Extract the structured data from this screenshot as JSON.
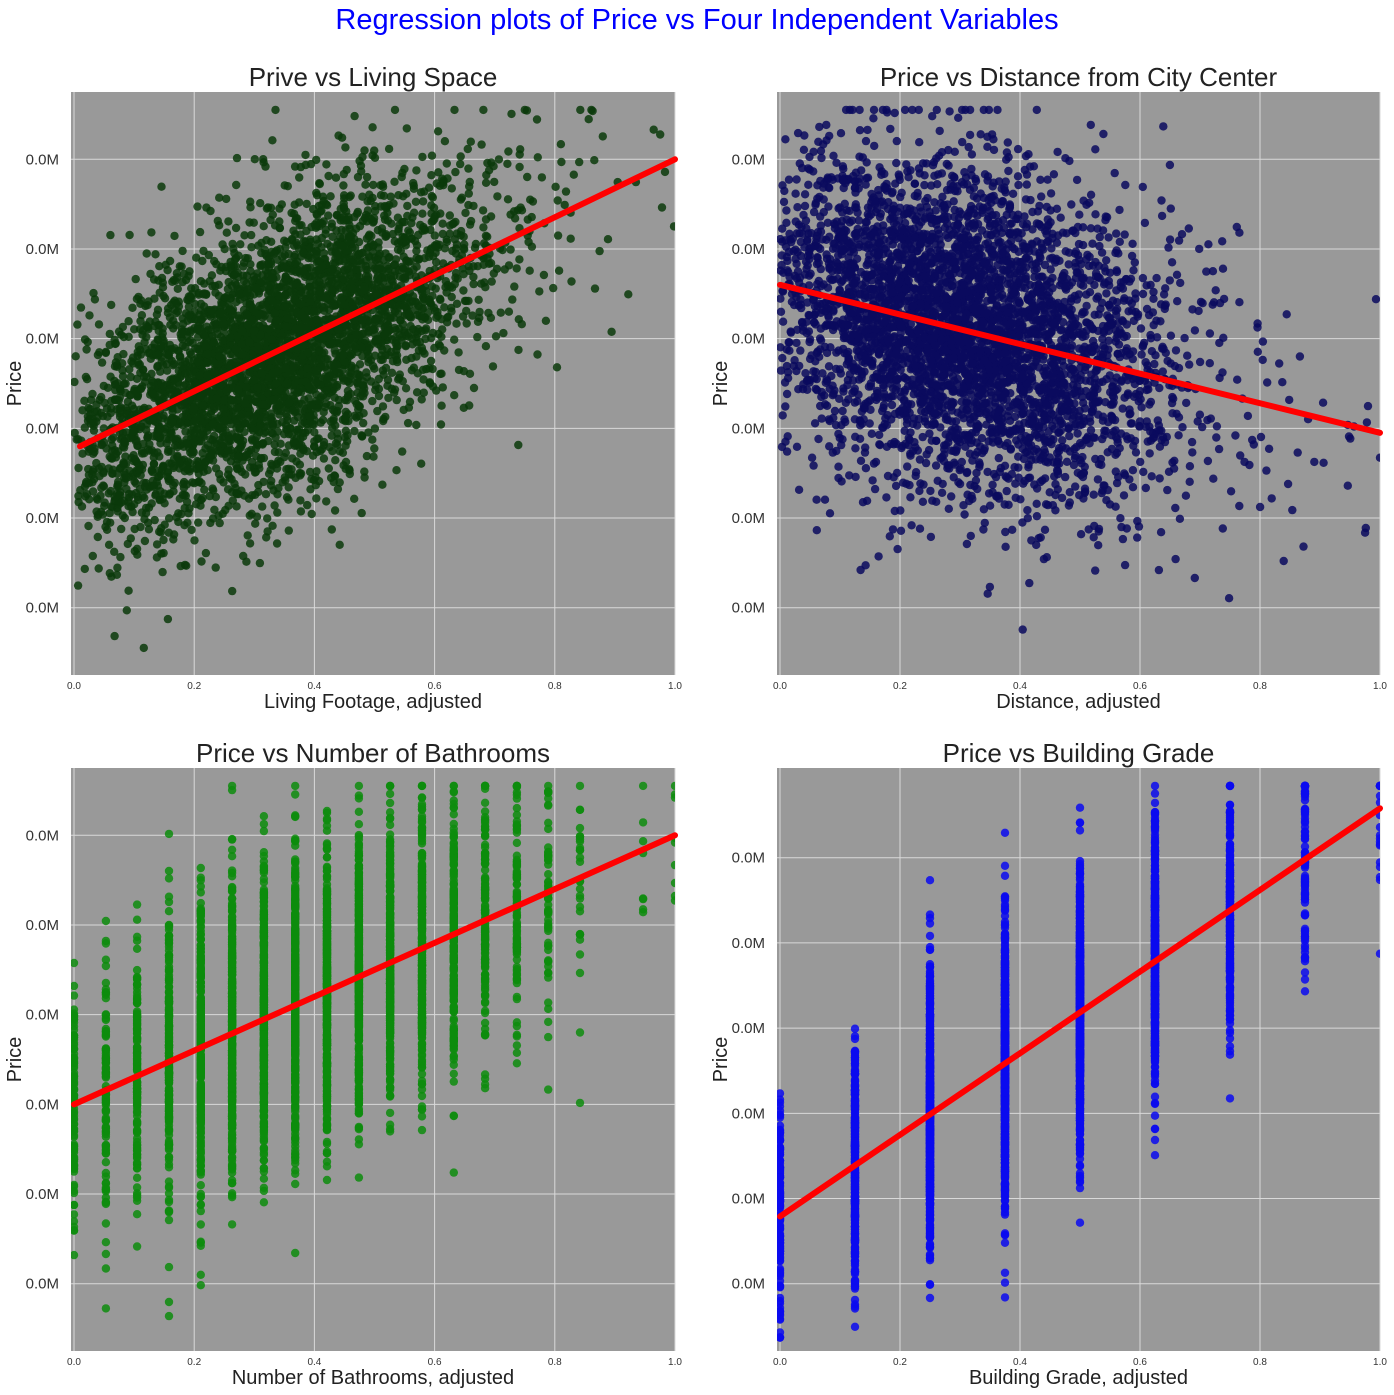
{
  "figure": {
    "suptitle": "Regression plots of Price vs Four Independent Variables",
    "suptitle_color": "#0000ff",
    "background": "#ffffff",
    "plot_background": "#999999",
    "grid_color": "#d9d9d9",
    "regression_line_color": "#ff0000"
  },
  "chart_data": [
    {
      "id": "living",
      "type": "scatter",
      "title": "Prive vs Living Space",
      "xlabel": "Living Footage, adjusted",
      "ylabel": "Price",
      "xlim": [
        -0.005,
        1.0
      ],
      "ylim": [
        -0.15,
        1.15
      ],
      "xticks": [
        0.0,
        0.2,
        0.4,
        0.6,
        0.8,
        1.0
      ],
      "xtick_labels": [
        "0.0",
        "0.2",
        "0.4",
        "0.6",
        "0.8",
        "1.0"
      ],
      "yticks": [
        0.0,
        0.2,
        0.4,
        0.6,
        0.8,
        1.0
      ],
      "ytick_labels": [
        "0.0M",
        "0.0M",
        "0.0M",
        "0.0M",
        "0.0M",
        "0.0M"
      ],
      "grid": true,
      "point_color": "#0b3a0b",
      "point_count": 4200,
      "distribution": "continuous",
      "center": 0.33,
      "trend": 0.45,
      "noise": 0.15,
      "regression": {
        "x": [
          0.01,
          1.0
        ],
        "y": [
          0.36,
          1.0
        ]
      }
    },
    {
      "id": "distance",
      "type": "scatter",
      "title": "Price vs Distance from City Center",
      "xlabel": "Distance, adjusted",
      "ylabel": "Price",
      "xlim": [
        -0.005,
        1.0
      ],
      "ylim": [
        -0.15,
        1.15
      ],
      "xticks": [
        0.0,
        0.2,
        0.4,
        0.6,
        0.8,
        1.0
      ],
      "xtick_labels": [
        "0.0",
        "0.2",
        "0.4",
        "0.6",
        "0.8",
        "1.0"
      ],
      "yticks": [
        0.0,
        0.2,
        0.4,
        0.6,
        0.8,
        1.0
      ],
      "ytick_labels": [
        "0.0M",
        "0.0M",
        "0.0M",
        "0.0M",
        "0.0M",
        "0.0M"
      ],
      "grid": true,
      "point_color": "#0a0a5e",
      "point_count": 4200,
      "distribution": "continuous",
      "center": 0.3,
      "trend": -0.33,
      "noise": 0.18,
      "regression": {
        "x": [
          0.0,
          1.0
        ],
        "y": [
          0.72,
          0.39
        ]
      }
    },
    {
      "id": "bathrooms",
      "type": "scatter",
      "title": "Price vs Number of Bathrooms",
      "xlabel": "Number of Bathrooms, adjusted",
      "ylabel": "Price",
      "xlim": [
        -0.005,
        1.0
      ],
      "ylim": [
        -0.15,
        1.15
      ],
      "xticks": [
        0.0,
        0.2,
        0.4,
        0.6,
        0.8,
        1.0
      ],
      "xtick_labels": [
        "0.0",
        "0.2",
        "0.4",
        "0.6",
        "0.8",
        "1.0"
      ],
      "yticks": [
        0.0,
        0.2,
        0.4,
        0.6,
        0.8,
        1.0
      ],
      "ytick_labels": [
        "0.0M",
        "0.0M",
        "0.0M",
        "0.0M",
        "0.0M",
        "0.0M"
      ],
      "grid": true,
      "point_color": "#0d8c0d",
      "point_count": 4200,
      "distribution": "discrete",
      "discrete_x": [
        0.0,
        0.053,
        0.105,
        0.158,
        0.211,
        0.263,
        0.316,
        0.368,
        0.421,
        0.474,
        0.526,
        0.579,
        0.632,
        0.684,
        0.737,
        0.789,
        0.842,
        0.947,
        1.0
      ],
      "trend": 0.5,
      "noise": 0.16,
      "regression": {
        "x": [
          0.0,
          1.0
        ],
        "y": [
          0.4,
          1.0
        ]
      }
    },
    {
      "id": "grade",
      "type": "scatter",
      "title": "Price vs Building Grade",
      "xlabel": "Building Grade, adjusted",
      "ylabel": "Price",
      "xlim": [
        -0.005,
        1.0
      ],
      "ylim": [
        -0.15,
        1.15
      ],
      "xticks": [
        0.0,
        0.2,
        0.4,
        0.6,
        0.8,
        1.0
      ],
      "xtick_labels": [
        "0.0",
        "0.2",
        "0.4",
        "0.6",
        "0.8",
        "1.0"
      ],
      "yticks": [
        0.0,
        0.19,
        0.38,
        0.57,
        0.76,
        0.95
      ],
      "ytick_labels": [
        "0.0M",
        "0.0M",
        "0.0M",
        "0.0M",
        "0.0M",
        "0.0M"
      ],
      "grid": true,
      "point_color": "#0a0aee",
      "point_count": 4200,
      "distribution": "discrete",
      "discrete_x": [
        0.0,
        0.125,
        0.25,
        0.375,
        0.5,
        0.625,
        0.75,
        0.875,
        1.0
      ],
      "trend": 0.85,
      "noise": 0.14,
      "regression": {
        "x": [
          0.0,
          1.0
        ],
        "y": [
          0.15,
          1.06
        ]
      }
    }
  ]
}
